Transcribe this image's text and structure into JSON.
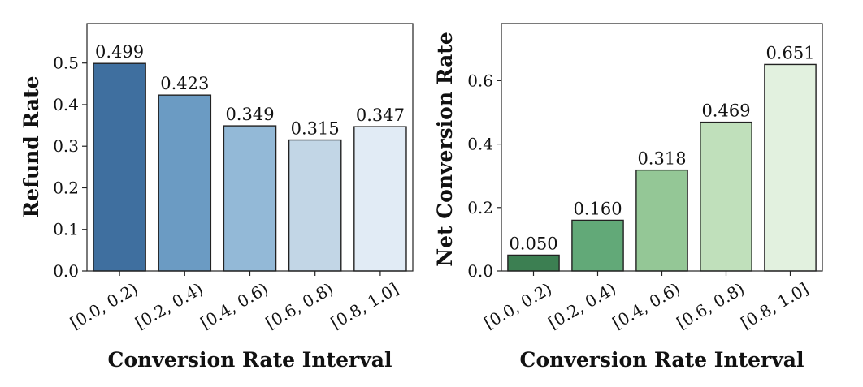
{
  "chart_data": [
    {
      "type": "bar",
      "title": "",
      "categories": [
        "[0.0, 0.2)",
        "[0.2, 0.4)",
        "[0.4, 0.6)",
        "[0.6, 0.8)",
        "[0.8, 1.0]"
      ],
      "values": [
        0.499,
        0.423,
        0.349,
        0.315,
        0.347
      ],
      "value_labels": [
        "0.499",
        "0.423",
        "0.349",
        "0.315",
        "0.347"
      ],
      "colors": [
        "#3f6f9f",
        "#6b9bc3",
        "#93b9d7",
        "#c2d6e6",
        "#e1ebf5"
      ],
      "xlabel": "Conversion Rate Interval",
      "ylabel": "Refund Rate",
      "ylim": [
        0,
        0.595
      ],
      "yticks": [
        0.0,
        0.1,
        0.2,
        0.3,
        0.4,
        0.5
      ],
      "ytick_labels": [
        "0.0",
        "0.1",
        "0.2",
        "0.3",
        "0.4",
        "0.5"
      ],
      "grid": false,
      "legend": "none"
    },
    {
      "type": "bar",
      "title": "",
      "categories": [
        "[0.0, 0.2)",
        "[0.2, 0.4)",
        "[0.4, 0.6)",
        "[0.6, 0.8)",
        "[0.8, 1.0]"
      ],
      "values": [
        0.05,
        0.16,
        0.318,
        0.469,
        0.651
      ],
      "value_labels": [
        "0.050",
        "0.160",
        "0.318",
        "0.469",
        "0.651"
      ],
      "colors": [
        "#3c7f52",
        "#62a978",
        "#94c796",
        "#c0e0bb",
        "#e2f1df"
      ],
      "xlabel": "Conversion Rate Interval",
      "ylabel": "Net Conversion Rate",
      "ylim": [
        0,
        0.78
      ],
      "yticks": [
        0.0,
        0.2,
        0.4,
        0.6
      ],
      "ytick_labels": [
        "0.0",
        "0.2",
        "0.4",
        "0.6"
      ],
      "grid": false,
      "legend": "none"
    }
  ]
}
